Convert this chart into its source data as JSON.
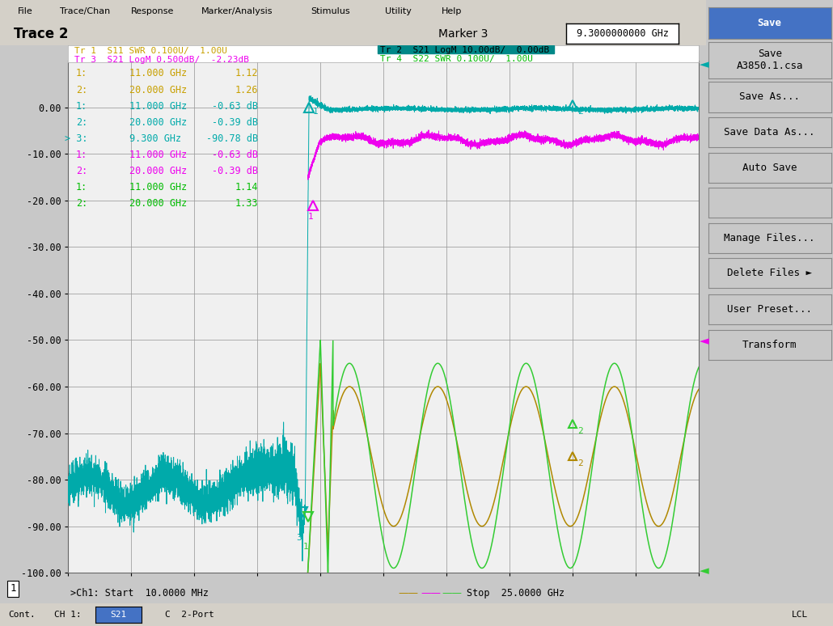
{
  "title_left": "Trace 2",
  "title_right": "Marker 3",
  "marker3_freq": "9.3000000000 GHz",
  "trace_labels": [
    {
      "text": "Tr 1  S11 SWR 0.100U/  1.00U",
      "color": "#c8a000"
    },
    {
      "text": "Tr 3  S21 LogM 0.500dB/  -2.23dB",
      "color": "#ee00ee"
    },
    {
      "text": "Tr 2  S21 LogM 10.00dB/  0.00dB",
      "color": "#008888"
    },
    {
      "text": "Tr 4  S22 SWR 0.100U/  1.00U",
      "color": "#00bb00"
    }
  ],
  "tr2_label_bg": "#008888",
  "tr2_label_text": "Tr 2  S21 LogM 10.00dB/  0.00dB",
  "marker_table": [
    {
      "num": "1:",
      "freq": "11.000 GHz",
      "val": "1.12",
      "color": "#c8a000"
    },
    {
      "num": "2:",
      "freq": "20.000 GHz",
      "val": "1.26",
      "color": "#c8a000"
    },
    {
      "num": "1:",
      "freq": "11.000 GHz",
      "val": "-0.63 dB",
      "color": "#00aaaa"
    },
    {
      "num": "2:",
      "freq": "20.000 GHz",
      "val": "-0.39 dB",
      "color": "#00aaaa"
    },
    {
      "num": "> 3:",
      "freq": "9.300 GHz",
      "val": "-90.78 dB",
      "color": "#00aaaa"
    },
    {
      "num": "1:",
      "freq": "11.000 GHz",
      "val": "-0.63 dB",
      "color": "#ee00ee"
    },
    {
      "num": "2:",
      "freq": "20.000 GHz",
      "val": "-0.39 dB",
      "color": "#ee00ee"
    },
    {
      "num": "1:",
      "freq": "11.000 GHz",
      "val": "1.14",
      "color": "#00bb00"
    },
    {
      "num": "2:",
      "freq": "20.000 GHz",
      "val": "1.33",
      "color": "#00bb00"
    }
  ],
  "xstart": 0.01,
  "xstop": 25.0,
  "ymin": -100.0,
  "ymax": 10.0,
  "ytick_labels": [
    "0.00",
    "-10.00",
    "-20.00",
    "-30.00",
    "-40.00",
    "-50.00",
    "-60.00",
    "-70.00",
    "-80.00",
    "-90.00",
    "-100.00"
  ],
  "ytick_vals": [
    0,
    -10,
    -20,
    -30,
    -40,
    -50,
    -60,
    -70,
    -80,
    -90,
    -100
  ],
  "plot_bg": "#f0f0f0",
  "grid_color": "#999999",
  "menubar_items": [
    "File",
    "Trace/Chan",
    "Response",
    "Marker/Analysis",
    "Stimulus",
    "Utility",
    "Help"
  ],
  "start_label": ">Ch1: Start  10.0000 MHz",
  "stop_label": "Stop  25.0000 GHz",
  "menu_buttons": [
    "Save",
    "Save\nA3850.1.csa",
    "Save As...",
    "Save Data As...",
    "Auto Save",
    "",
    "Manage Files...",
    "Delete Files ►",
    "User Preset...",
    "Transform"
  ],
  "cyan_color": "#00aaaa",
  "magenta_color": "#ee00ee",
  "green_color": "#33cc33",
  "gold_color": "#b08800",
  "marker_cyan": "#00aaaa",
  "marker_gold": "#b08800",
  "marker_green": "#33cc33"
}
